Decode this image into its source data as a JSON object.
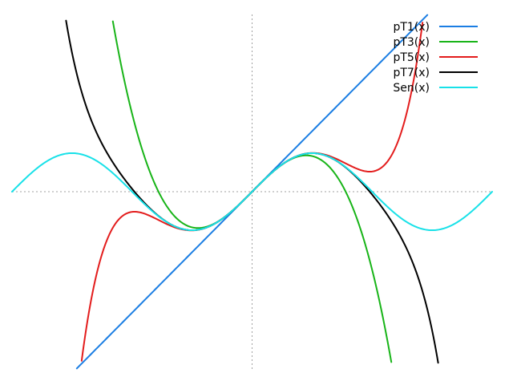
{
  "chart_data": {
    "type": "line",
    "title": "",
    "xlabel": "",
    "ylabel": "",
    "xlim": [
      -6.2832,
      6.2832
    ],
    "ylim": [
      -4.6,
      4.6
    ],
    "grid": false,
    "zero_axes": true,
    "legend_position": "top-right",
    "series": [
      {
        "name": "pT1(x)",
        "color": "#1b7ee3",
        "coefficients": [
          0,
          1
        ]
      },
      {
        "name": "pT3(x)",
        "color": "#18b418",
        "coefficients": [
          0,
          1,
          0,
          -0.1666667
        ]
      },
      {
        "name": "pT5(x)",
        "color": "#e31c1c",
        "coefficients": [
          0,
          1,
          0,
          -0.1666667,
          0,
          0.0083333
        ]
      },
      {
        "name": "pT7(x)",
        "color": "#000000",
        "coefficients": [
          0,
          1,
          0,
          -0.1666667,
          0,
          0.0083333,
          0,
          -0.000198413
        ]
      },
      {
        "name": "Sen(x)",
        "color": "#18e1e8",
        "function": "sin"
      }
    ],
    "x_samples": [
      -6.2832,
      6.2832
    ],
    "sample_count": 400
  }
}
